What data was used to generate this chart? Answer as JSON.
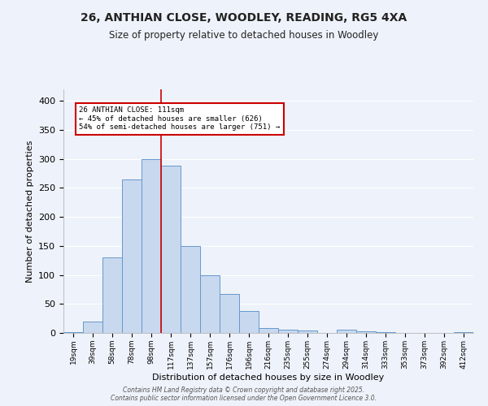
{
  "title_line1": "26, ANTHIAN CLOSE, WOODLEY, READING, RG5 4XA",
  "title_line2": "Size of property relative to detached houses in Woodley",
  "xlabel": "Distribution of detached houses by size in Woodley",
  "ylabel": "Number of detached properties",
  "bin_labels": [
    "19sqm",
    "39sqm",
    "58sqm",
    "78sqm",
    "98sqm",
    "117sqm",
    "137sqm",
    "157sqm",
    "176sqm",
    "196sqm",
    "216sqm",
    "235sqm",
    "255sqm",
    "274sqm",
    "294sqm",
    "314sqm",
    "333sqm",
    "353sqm",
    "373sqm",
    "392sqm",
    "412sqm"
  ],
  "bar_values": [
    2,
    20,
    130,
    265,
    300,
    288,
    150,
    100,
    67,
    38,
    9,
    5,
    4,
    0,
    5,
    3,
    2,
    0,
    0,
    0,
    2
  ],
  "bar_color": "#c8d8ef",
  "bar_edge_color": "#6699cc",
  "red_line_index": 5,
  "red_line_color": "#cc0000",
  "annotation_text": "26 ANTHIAN CLOSE: 111sqm\n← 45% of detached houses are smaller (626)\n54% of semi-detached houses are larger (751) →",
  "annotation_box_color": "#cc0000",
  "ylim": [
    0,
    420
  ],
  "yticks": [
    0,
    50,
    100,
    150,
    200,
    250,
    300,
    350,
    400
  ],
  "background_color": "#eef2fa",
  "grid_color": "#ffffff",
  "footer_line1": "Contains HM Land Registry data © Crown copyright and database right 2025.",
  "footer_line2": "Contains public sector information licensed under the Open Government Licence 3.0."
}
